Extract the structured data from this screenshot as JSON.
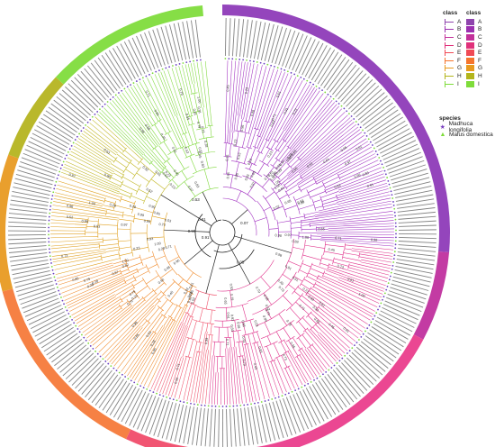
{
  "legend": {
    "class_title_1": "class",
    "class_title_2": "class",
    "classes": [
      {
        "label": "A",
        "color": "#8e44ad"
      },
      {
        "label": "B",
        "color": "#9b30b0"
      },
      {
        "label": "C",
        "color": "#c2309a"
      },
      {
        "label": "D",
        "color": "#e0307a"
      },
      {
        "label": "E",
        "color": "#f04a55"
      },
      {
        "label": "F",
        "color": "#f5752d"
      },
      {
        "label": "G",
        "color": "#e89a1e"
      },
      {
        "label": "H",
        "color": "#b3b51c"
      },
      {
        "label": "I",
        "color": "#7edc3a"
      }
    ],
    "species_title": "species",
    "species": [
      {
        "label": "Madhuca longifolia",
        "symbol": "★",
        "color": "#7a3fbf"
      },
      {
        "label": "Malus domestica",
        "symbol": "▲",
        "color": "#7edc3a"
      }
    ]
  },
  "ring_sectors": [
    {
      "class": "A",
      "start": 0,
      "end": 95,
      "color": "#8e3bb8"
    },
    {
      "class": "B/C",
      "start": 95,
      "end": 118,
      "color": "#c0309e"
    },
    {
      "class": "D",
      "start": 118,
      "end": 185,
      "color": "#ea3d8c"
    },
    {
      "class": "E",
      "start": 185,
      "end": 205,
      "color": "#f04c6a"
    },
    {
      "class": "F",
      "start": 205,
      "end": 255,
      "color": "#f57a3a"
    },
    {
      "class": "G",
      "start": 255,
      "end": 290,
      "color": "#e89a22"
    },
    {
      "class": "H",
      "start": 290,
      "end": 313,
      "color": "#b5b420"
    },
    {
      "class": "I",
      "start": 313,
      "end": 355,
      "color": "#80dc3c"
    }
  ],
  "bootstrap_samples": [
    "1.00",
    "0.98",
    "0.96",
    "0.99",
    "0.91",
    "0.85",
    "0.79",
    "0.45",
    "0.65",
    "0.73",
    "0.53",
    "0.97",
    "0.28",
    "0.61",
    "0.83",
    "0.52",
    "0.23",
    "0.61",
    "0.93",
    "0.71"
  ],
  "core_labels": [
    "0.91",
    "0.81",
    "0.90",
    "0.07",
    "0.53",
    "0.05"
  ],
  "tip_label_prefixes": [
    "MdNAC",
    "MlNAC"
  ]
}
